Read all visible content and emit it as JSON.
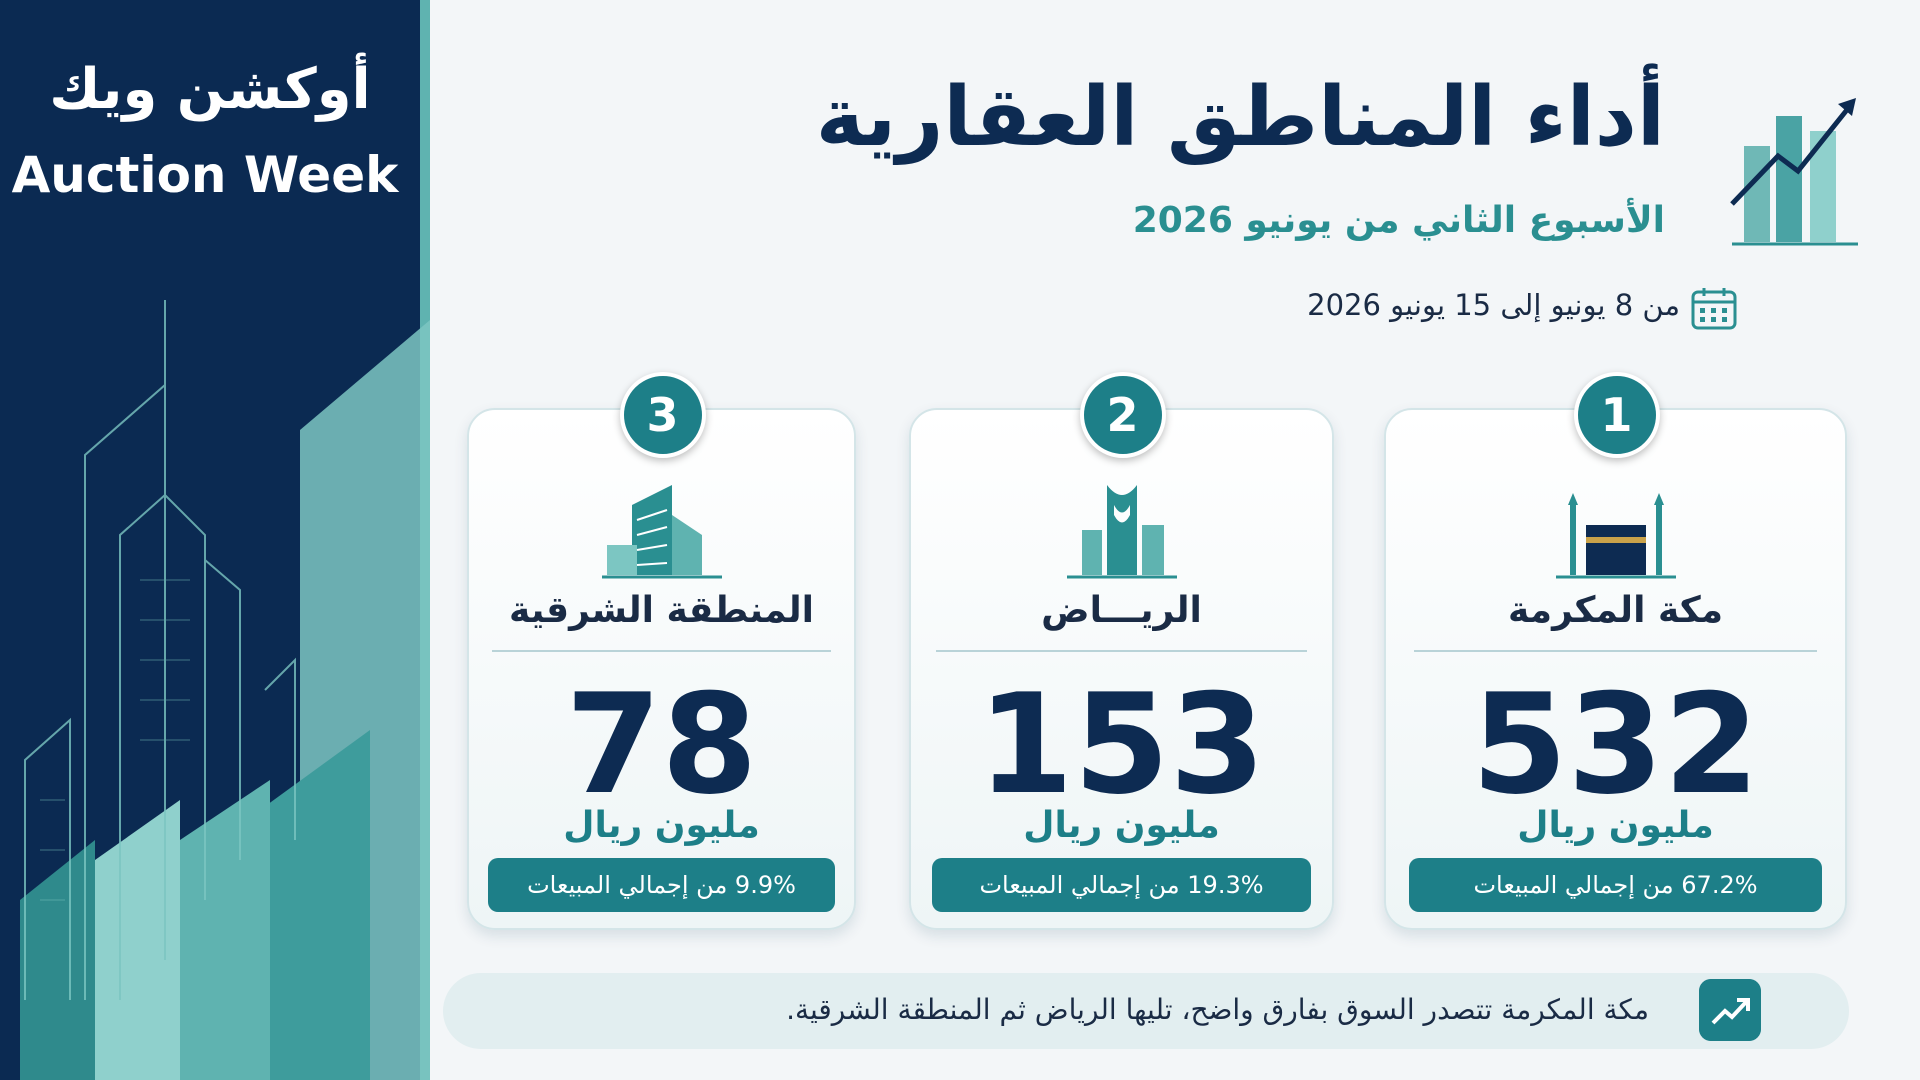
{
  "brand": {
    "name_ar": "أوكشن ويك",
    "name_en": "Auction Week"
  },
  "header": {
    "title": "أداء المناطق العقارية",
    "subtitle": "الأسبوع الثاني من يونيو 2026",
    "date_range": "من 8 يونيو إلى 15 يونيو 2026"
  },
  "cards": [
    {
      "rank": 1,
      "region": "مكة المكرمة",
      "amount": 532,
      "unit": "مليون ريال",
      "share": "67.2% من إجمالي المبيعات"
    },
    {
      "rank": 2,
      "region": "الريـــاض",
      "amount": 153,
      "unit": "مليون ريال",
      "share": "19.3% من إجمالي المبيعات"
    },
    {
      "rank": 3,
      "region": "المنطقة الشرقية",
      "amount": 78,
      "unit": "مليون ريال",
      "share": "9.9% من إجمالي المبيعات"
    }
  ],
  "footer": {
    "note": "مكة المكرمة تتصدر السوق بفارق واضح، تليها الرياض ثم المنطقة الشرقية."
  }
}
